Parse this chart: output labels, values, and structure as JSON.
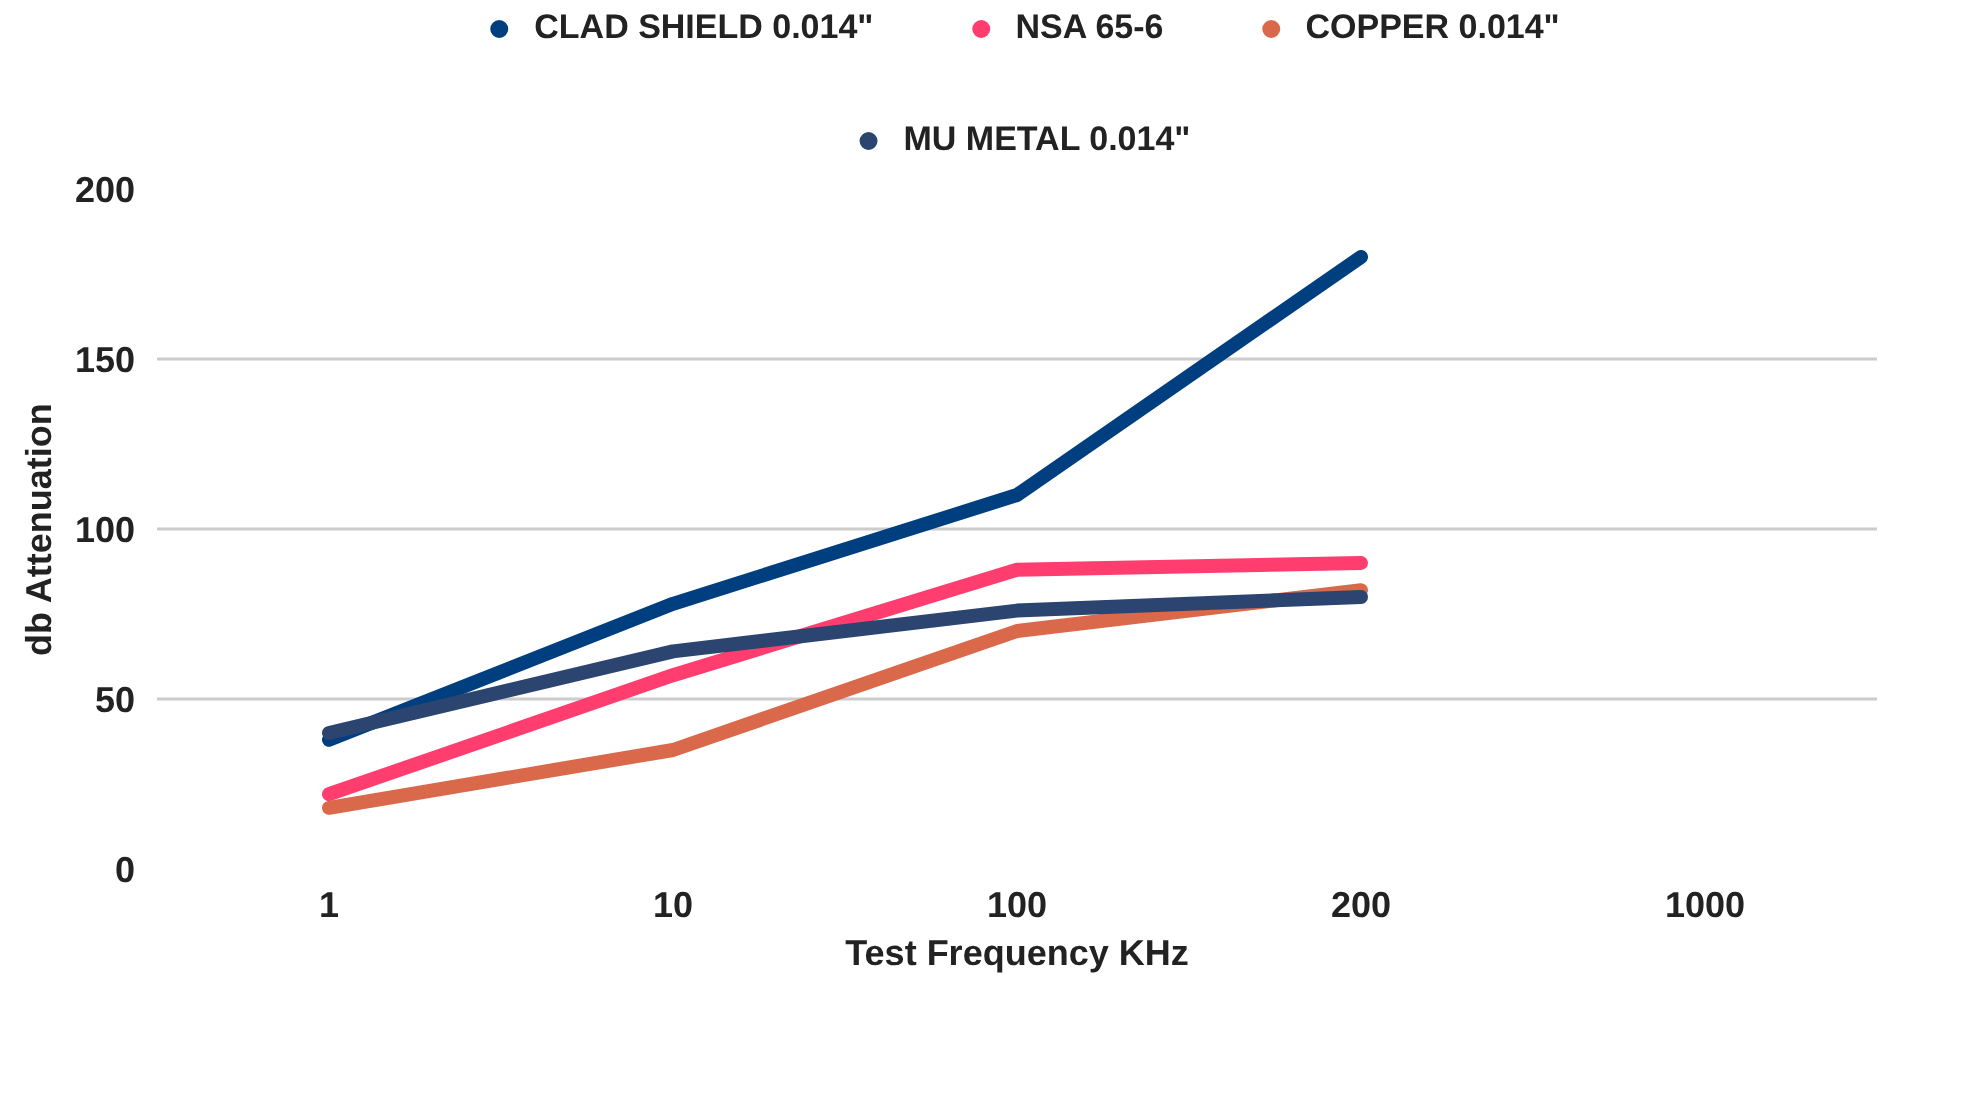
{
  "chart_data": {
    "type": "line",
    "xlabel": "Test Frequency KHz",
    "ylabel": "db Attenuation",
    "categories": [
      "1",
      "10",
      "100",
      "200",
      "1000"
    ],
    "series": [
      {
        "name": "CLAD SHIELD 0.014\"",
        "color": "#003f7f",
        "values": [
          38,
          78,
          110,
          180,
          null
        ]
      },
      {
        "name": "NSA 65-6",
        "color": "#ff3d6e",
        "values": [
          22,
          57,
          88,
          90,
          null
        ]
      },
      {
        "name": "COPPER 0.014\"",
        "color": "#d9694a",
        "values": [
          18,
          35,
          70,
          82,
          null
        ]
      },
      {
        "name": "MU METAL 0.014\"",
        "color": "#2b4570",
        "values": [
          40,
          64,
          76,
          80,
          null
        ]
      }
    ],
    "ylim": [
      0,
      200
    ],
    "yticks": [
      0,
      50,
      100,
      150,
      200
    ],
    "grid": "y",
    "legend": "top",
    "marker": "none",
    "line_style": "solid"
  }
}
